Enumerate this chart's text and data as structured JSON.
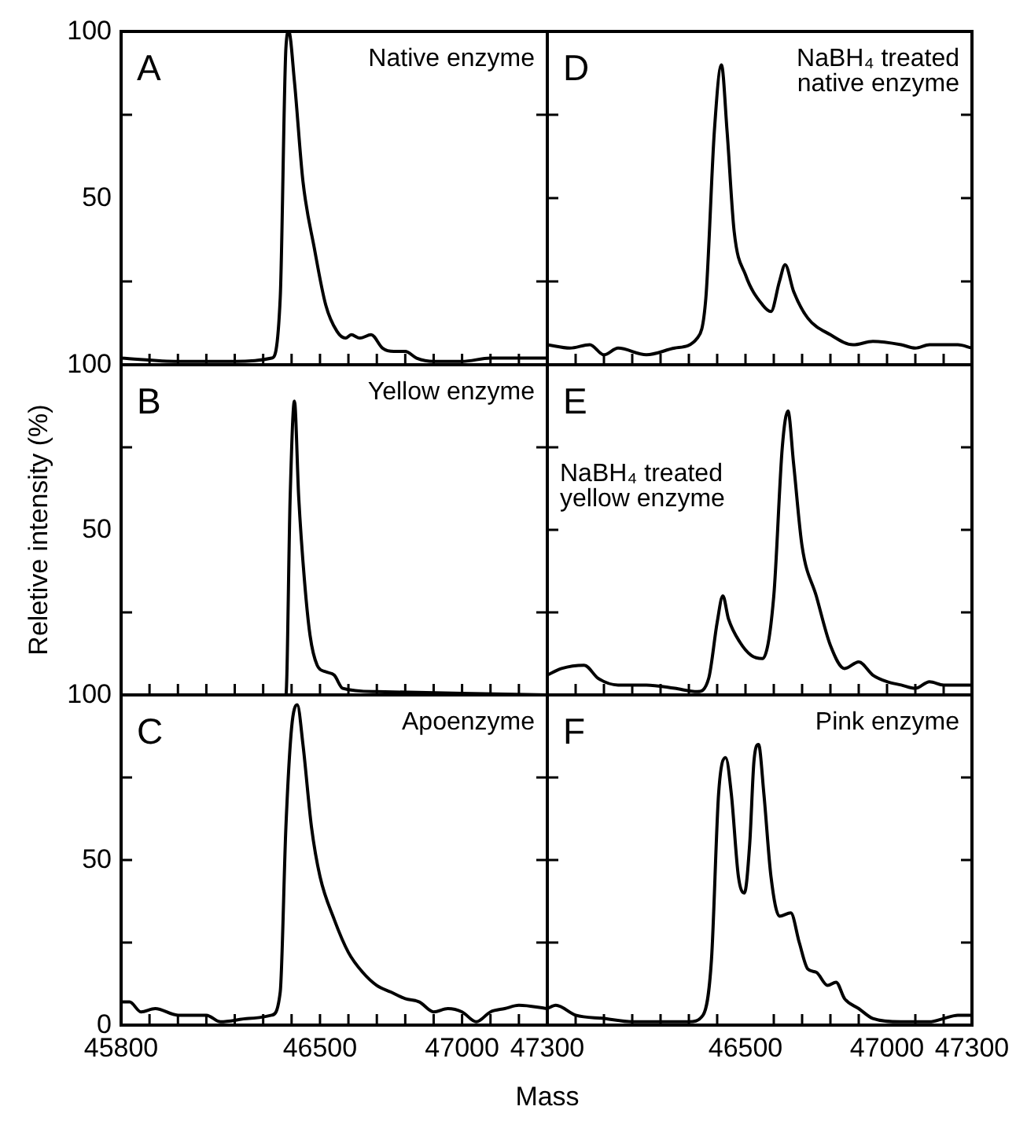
{
  "chart_data": [
    {
      "type": "line",
      "title": "A",
      "annotations": [
        "Native enzyme"
      ],
      "color": "#000000",
      "xlim": [
        45800,
        47300
      ],
      "ylim": [
        0,
        100
      ],
      "tick_labels": "y",
      "legend": false,
      "grid": false,
      "marker": "none",
      "xticks": [
        {
          "value": 45800,
          "label": null
        },
        {
          "value": 45900,
          "label": null
        },
        {
          "value": 46000,
          "label": null
        },
        {
          "value": 46100,
          "label": null
        },
        {
          "value": 46200,
          "label": null
        },
        {
          "value": 46300,
          "label": null
        },
        {
          "value": 46400,
          "label": null
        },
        {
          "value": 46500,
          "label": null
        },
        {
          "value": 46600,
          "label": null
        },
        {
          "value": 46700,
          "label": null
        },
        {
          "value": 46800,
          "label": null
        },
        {
          "value": 46900,
          "label": null
        },
        {
          "value": 47000,
          "label": null
        },
        {
          "value": 47100,
          "label": null
        },
        {
          "value": 47200,
          "label": null
        },
        {
          "value": 47300,
          "label": null
        }
      ],
      "yticks": [
        {
          "value": 0,
          "label": null
        },
        {
          "value": 25,
          "label": null
        },
        50,
        {
          "value": 75,
          "label": null
        },
        100
      ],
      "x": [
        45800,
        46000,
        46200,
        46330,
        46360,
        46380,
        46390,
        46410,
        46440,
        46480,
        46520,
        46560,
        46590,
        46610,
        46640,
        46680,
        46720,
        46760,
        46800,
        46840,
        46900,
        47000,
        47100,
        47150,
        47200,
        47300
      ],
      "values": [
        2,
        1,
        1,
        2,
        20,
        95,
        100,
        85,
        55,
        35,
        18,
        10,
        8,
        9,
        8,
        9,
        5,
        4,
        4,
        2,
        1,
        1,
        2,
        2,
        2,
        2
      ]
    },
    {
      "type": "line",
      "title": "D",
      "annotations": [
        "NaBH₄ treated native enzyme"
      ],
      "color": "#000000",
      "xlim": [
        45800,
        47300
      ],
      "ylim": [
        0,
        100
      ],
      "tick_labels": false,
      "legend": false,
      "grid": false,
      "marker": "none",
      "xticks": [
        {
          "value": 45800,
          "label": null
        },
        {
          "value": 45900,
          "label": null
        },
        {
          "value": 46000,
          "label": null
        },
        {
          "value": 46100,
          "label": null
        },
        {
          "value": 46200,
          "label": null
        },
        {
          "value": 46300,
          "label": null
        },
        {
          "value": 46400,
          "label": null
        },
        {
          "value": 46500,
          "label": null
        },
        {
          "value": 46600,
          "label": null
        },
        {
          "value": 46700,
          "label": null
        },
        {
          "value": 46800,
          "label": null
        },
        {
          "value": 46900,
          "label": null
        },
        {
          "value": 47000,
          "label": null
        },
        {
          "value": 47100,
          "label": null
        },
        {
          "value": 47200,
          "label": null
        },
        {
          "value": 47300,
          "label": null
        }
      ],
      "yticks": [
        {
          "value": 0,
          "label": null
        },
        {
          "value": 25,
          "label": null
        },
        {
          "value": 50,
          "label": null
        },
        {
          "value": 75,
          "label": null
        },
        {
          "value": 100,
          "label": null
        }
      ],
      "x": [
        45800,
        45880,
        45950,
        46000,
        46050,
        46150,
        46250,
        46330,
        46360,
        46390,
        46415,
        46435,
        46460,
        46500,
        46560,
        46590,
        46620,
        46640,
        46670,
        46720,
        46800,
        46880,
        46950,
        47050,
        47100,
        47150,
        47250,
        47300
      ],
      "values": [
        6,
        5,
        6,
        3,
        5,
        3,
        5,
        8,
        20,
        70,
        90,
        70,
        40,
        27,
        18,
        16,
        25,
        30,
        22,
        14,
        9,
        6,
        7,
        6,
        5,
        6,
        6,
        5
      ]
    },
    {
      "type": "line",
      "title": "B",
      "annotations": [
        "Yellow enzyme"
      ],
      "ylabel": "Reletive intensity (%)",
      "color": "#000000",
      "xlim": [
        45800,
        47300
      ],
      "ylim": [
        0,
        100
      ],
      "tick_labels": "y",
      "legend": false,
      "grid": false,
      "marker": "none",
      "xticks": [
        {
          "value": 45800,
          "label": null
        },
        {
          "value": 45900,
          "label": null
        },
        {
          "value": 46000,
          "label": null
        },
        {
          "value": 46100,
          "label": null
        },
        {
          "value": 46200,
          "label": null
        },
        {
          "value": 46300,
          "label": null
        },
        {
          "value": 46400,
          "label": null
        },
        {
          "value": 46500,
          "label": null
        },
        {
          "value": 46600,
          "label": null
        },
        {
          "value": 46700,
          "label": null
        },
        {
          "value": 46800,
          "label": null
        },
        {
          "value": 46900,
          "label": null
        },
        {
          "value": 47000,
          "label": null
        },
        {
          "value": 47100,
          "label": null
        },
        {
          "value": 47200,
          "label": null
        },
        {
          "value": 47300,
          "label": null
        }
      ],
      "yticks": [
        {
          "value": 0,
          "label": null
        },
        {
          "value": 25,
          "label": null
        },
        50,
        {
          "value": 75,
          "label": null
        },
        100
      ],
      "x": [
        45800,
        46300,
        46380,
        46395,
        46410,
        46425,
        46445,
        46465,
        46490,
        46520,
        46550,
        46580,
        46700,
        47000,
        47300
      ],
      "values": [
        0,
        0,
        0,
        60,
        89,
        60,
        35,
        18,
        9,
        7,
        6,
        2,
        1,
        0.5,
        0
      ]
    },
    {
      "type": "line",
      "title": "E",
      "annotations": [
        "NaBH₄ treated yellow enzyme"
      ],
      "color": "#000000",
      "xlim": [
        45800,
        47300
      ],
      "ylim": [
        0,
        100
      ],
      "tick_labels": false,
      "legend": false,
      "grid": false,
      "marker": "none",
      "xticks": [
        {
          "value": 45800,
          "label": null
        },
        {
          "value": 45900,
          "label": null
        },
        {
          "value": 46000,
          "label": null
        },
        {
          "value": 46100,
          "label": null
        },
        {
          "value": 46200,
          "label": null
        },
        {
          "value": 46300,
          "label": null
        },
        {
          "value": 46400,
          "label": null
        },
        {
          "value": 46500,
          "label": null
        },
        {
          "value": 46600,
          "label": null
        },
        {
          "value": 46700,
          "label": null
        },
        {
          "value": 46800,
          "label": null
        },
        {
          "value": 46900,
          "label": null
        },
        {
          "value": 47000,
          "label": null
        },
        {
          "value": 47100,
          "label": null
        },
        {
          "value": 47200,
          "label": null
        },
        {
          "value": 47300,
          "label": null
        }
      ],
      "yticks": [
        {
          "value": 0,
          "label": null
        },
        {
          "value": 25,
          "label": null
        },
        {
          "value": 50,
          "label": null
        },
        {
          "value": 75,
          "label": null
        },
        {
          "value": 100,
          "label": null
        }
      ],
      "x": [
        45800,
        45850,
        45930,
        45980,
        46050,
        46150,
        46250,
        46330,
        46370,
        46400,
        46420,
        46440,
        46480,
        46520,
        46560,
        46600,
        46630,
        46650,
        46670,
        46700,
        46750,
        46800,
        46850,
        46900,
        46950,
        47000,
        47050,
        47100,
        47150,
        47200,
        47300
      ],
      "values": [
        6,
        8,
        9,
        5,
        3,
        3,
        2,
        1,
        5,
        22,
        30,
        23,
        16,
        12,
        11,
        30,
        75,
        86,
        70,
        45,
        30,
        15,
        8,
        10,
        6,
        4,
        3,
        2,
        4,
        3,
        3
      ]
    },
    {
      "type": "line",
      "title": "C",
      "annotations": [
        "Apoenzyme"
      ],
      "xlabel": "Mass",
      "color": "#000000",
      "xlim": [
        45800,
        47300
      ],
      "ylim": [
        0,
        100
      ],
      "legend": false,
      "grid": false,
      "marker": "none",
      "xticks": [
        45800,
        {
          "value": 45900,
          "label": null
        },
        {
          "value": 46000,
          "label": null
        },
        {
          "value": 46100,
          "label": null
        },
        {
          "value": 46200,
          "label": null
        },
        {
          "value": 46300,
          "label": null
        },
        {
          "value": 46400,
          "label": null
        },
        46500,
        {
          "value": 46600,
          "label": null
        },
        {
          "value": 46700,
          "label": null
        },
        {
          "value": 46800,
          "label": null
        },
        {
          "value": 46900,
          "label": null
        },
        47000,
        {
          "value": 47100,
          "label": null
        },
        {
          "value": 47200,
          "label": null
        },
        47300
      ],
      "yticks": [
        0,
        {
          "value": 25,
          "label": null
        },
        50,
        {
          "value": 75,
          "label": null
        },
        100
      ],
      "x": [
        45800,
        45830,
        45870,
        45920,
        46000,
        46100,
        46150,
        46250,
        46330,
        46360,
        46380,
        46400,
        46420,
        46440,
        46470,
        46500,
        46550,
        46600,
        46650,
        46700,
        46750,
        46800,
        46850,
        46900,
        46950,
        47000,
        47050,
        47100,
        47150,
        47200,
        47300
      ],
      "values": [
        7,
        7,
        4,
        5,
        3,
        3,
        1,
        2,
        3,
        10,
        60,
        90,
        97,
        85,
        60,
        45,
        32,
        22,
        16,
        12,
        10,
        8,
        7,
        4,
        5,
        4,
        1,
        4,
        5,
        6,
        5
      ]
    },
    {
      "type": "line",
      "title": "F",
      "annotations": [
        "Pink enzyme"
      ],
      "color": "#000000",
      "xlim": [
        45800,
        47300
      ],
      "ylim": [
        0,
        100
      ],
      "tick_labels": "x",
      "legend": false,
      "grid": false,
      "marker": "none",
      "xticks": [
        {
          "value": 45800,
          "label": null
        },
        {
          "value": 45900,
          "label": null
        },
        {
          "value": 46000,
          "label": null
        },
        {
          "value": 46100,
          "label": null
        },
        {
          "value": 46200,
          "label": null
        },
        {
          "value": 46300,
          "label": null
        },
        {
          "value": 46400,
          "label": null
        },
        46500,
        {
          "value": 46600,
          "label": null
        },
        {
          "value": 46700,
          "label": null
        },
        {
          "value": 46800,
          "label": null
        },
        {
          "value": 46900,
          "label": null
        },
        47000,
        {
          "value": 47100,
          "label": null
        },
        {
          "value": 47200,
          "label": null
        },
        47300
      ],
      "yticks": [
        {
          "value": 0,
          "label": null
        },
        {
          "value": 25,
          "label": null
        },
        {
          "value": 50,
          "label": null
        },
        {
          "value": 75,
          "label": null
        },
        {
          "value": 100,
          "label": null
        }
      ],
      "x": [
        45800,
        45830,
        45900,
        46000,
        46100,
        46200,
        46300,
        46350,
        46380,
        46405,
        46430,
        46450,
        46475,
        46496,
        46515,
        46530,
        46546,
        46565,
        46590,
        46620,
        46660,
        46690,
        46720,
        46750,
        46790,
        46820,
        46850,
        46900,
        46950,
        47050,
        47150,
        47200,
        47250,
        47300
      ],
      "values": [
        5,
        6,
        3,
        2,
        1,
        1,
        1,
        3,
        20,
        70,
        81,
        70,
        45,
        40,
        55,
        80,
        85,
        70,
        45,
        33,
        34,
        25,
        17,
        16,
        12,
        13,
        8,
        5,
        2,
        1,
        1,
        2,
        3,
        3
      ]
    }
  ]
}
